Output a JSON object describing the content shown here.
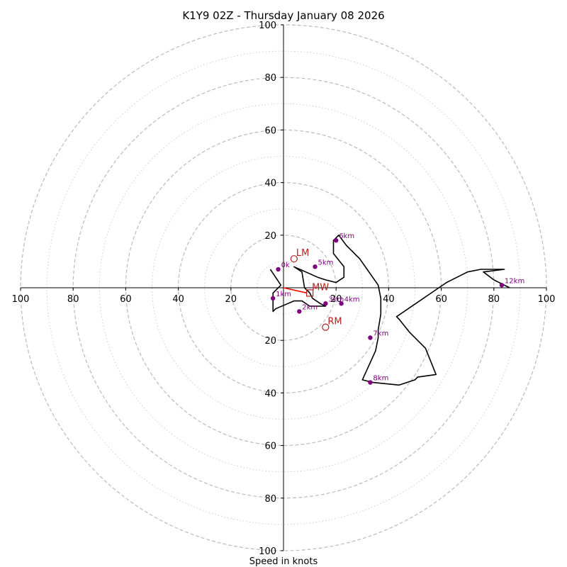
{
  "chart_data": {
    "type": "hodograph",
    "title": "K1Y9 02Z - Thursday January 08 2026",
    "xlabel": "Speed in knots",
    "range": [
      -100,
      100
    ],
    "rings": {
      "major": [
        20,
        40,
        60,
        80,
        100
      ],
      "minor": [
        10,
        30,
        50,
        70,
        90
      ],
      "major_color": "#bbbbbb",
      "minor_color": "#cccccc"
    },
    "ticks": {
      "x": [
        {
          "value": -100,
          "label": "100"
        },
        {
          "value": -80,
          "label": "80"
        },
        {
          "value": -60,
          "label": "60"
        },
        {
          "value": -40,
          "label": "40"
        },
        {
          "value": -20,
          "label": "20"
        },
        {
          "value": 20,
          "label": "20"
        },
        {
          "value": 40,
          "label": "40"
        },
        {
          "value": 60,
          "label": "60"
        },
        {
          "value": 80,
          "label": "80"
        },
        {
          "value": 100,
          "label": "100"
        }
      ],
      "y": [
        {
          "value": 100,
          "label": "100"
        },
        {
          "value": 80,
          "label": "80"
        },
        {
          "value": 60,
          "label": "60"
        },
        {
          "value": 40,
          "label": "40"
        },
        {
          "value": 20,
          "label": "20"
        },
        {
          "value": -20,
          "label": "20"
        },
        {
          "value": -40,
          "label": "40"
        },
        {
          "value": -60,
          "label": "60"
        },
        {
          "value": -80,
          "label": "80"
        },
        {
          "value": -100,
          "label": "100"
        }
      ]
    },
    "hodograph": {
      "color": "#000000",
      "points": [
        [
          -5,
          7
        ],
        [
          -1,
          1
        ],
        [
          -4,
          -2
        ],
        [
          -4,
          -9
        ],
        [
          -3,
          -8
        ],
        [
          4,
          -5
        ],
        [
          7,
          -5
        ],
        [
          10,
          -7
        ],
        [
          16,
          -7
        ],
        [
          14,
          -6
        ],
        [
          11,
          -4
        ],
        [
          10,
          -2
        ],
        [
          8,
          0
        ],
        [
          7,
          6
        ],
        [
          4,
          8
        ],
        [
          13,
          4
        ],
        [
          16,
          3
        ],
        [
          20,
          2
        ],
        [
          23,
          4
        ],
        [
          23,
          8
        ],
        [
          19,
          13
        ],
        [
          19,
          18
        ],
        [
          21,
          20
        ],
        [
          24,
          16
        ],
        [
          29,
          11
        ],
        [
          36,
          1
        ],
        [
          37,
          -4
        ],
        [
          37,
          -10
        ],
        [
          36,
          -16
        ],
        [
          36,
          -19
        ],
        [
          35,
          -24
        ],
        [
          30,
          -35
        ],
        [
          34,
          -36
        ],
        [
          44,
          -37
        ],
        [
          50,
          -35
        ],
        [
          51,
          -34
        ],
        [
          58,
          -33
        ],
        [
          54,
          -23
        ],
        [
          51,
          -20
        ],
        [
          48,
          -17
        ],
        [
          44,
          -12
        ],
        [
          43,
          -11
        ],
        [
          62,
          2
        ],
        [
          70,
          6
        ],
        [
          75,
          7
        ],
        [
          84,
          7
        ],
        [
          76,
          6
        ],
        [
          80,
          3
        ],
        [
          84,
          1
        ],
        [
          86,
          0
        ]
      ]
    },
    "height_markers": {
      "color": "#800080",
      "points": [
        {
          "label": "0km",
          "u": -2,
          "v": 7,
          "display": "0k"
        },
        {
          "label": "1km",
          "u": -4,
          "v": -4
        },
        {
          "label": "2km",
          "u": 6,
          "v": -9
        },
        {
          "label": "3km",
          "u": 16,
          "v": -6
        },
        {
          "label": "4km",
          "u": 22,
          "v": -6
        },
        {
          "label": "5km",
          "u": 12,
          "v": 8
        },
        {
          "label": "6km",
          "u": 20,
          "v": 18
        },
        {
          "label": "7km",
          "u": 33,
          "v": -19
        },
        {
          "label": "8km",
          "u": 33,
          "v": -36
        },
        {
          "label": "12km",
          "u": 83,
          "v": 1
        }
      ]
    },
    "storm_motion": {
      "color": "#b22222",
      "points": [
        {
          "label": "LM",
          "u": 4,
          "v": 11,
          "marker": "circle"
        },
        {
          "label": "MW",
          "u": 10,
          "v": -2,
          "marker": "square"
        },
        {
          "label": "RM",
          "u": 16,
          "v": -15,
          "marker": "circle"
        }
      ]
    },
    "shear_vector": {
      "color": "#ff0000",
      "from": [
        0,
        0
      ],
      "to": [
        9,
        -2
      ]
    }
  }
}
